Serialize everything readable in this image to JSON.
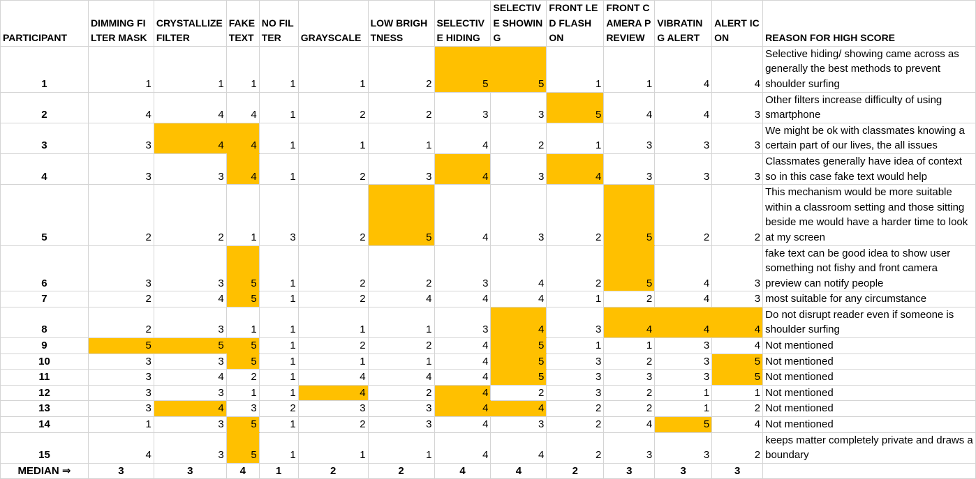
{
  "highlight_color": "#ffc000",
  "header": {
    "participant": "PARTICIPANT",
    "columns": [
      "DIMMING FILTER MASK",
      "CRYSTALLIZE FILTER",
      "FAKE TEXT",
      "NO FILTER",
      "GRAYSCALE",
      "LOW BRIGHTNESS",
      "SELECTIVE HIDING",
      "SELECTIVE SHOWING",
      "FRONT LED FLASH ON",
      "FRONT CAMERA PREVIEW",
      "VIBRATING ALERT",
      "ALERT ICON"
    ],
    "reason": "REASON FOR HIGH SCORE"
  },
  "rows": [
    {
      "participant": "1",
      "scores": [
        "1",
        "1",
        "1",
        "1",
        "1",
        "2",
        "5",
        "5",
        "1",
        "1",
        "4",
        "4"
      ],
      "highlight": [
        6,
        7
      ],
      "reason": "Selective hiding/ showing came across as generally the best methods to prevent shoulder surfing"
    },
    {
      "participant": "2",
      "scores": [
        "4",
        "4",
        "4",
        "1",
        "2",
        "2",
        "3",
        "3",
        "5",
        "4",
        "4",
        "3"
      ],
      "highlight": [
        8
      ],
      "reason": "Other filters increase difficulty of using smartphone"
    },
    {
      "participant": "3",
      "scores": [
        "3",
        "4",
        "4",
        "1",
        "1",
        "1",
        "4",
        "2",
        "1",
        "3",
        "3",
        "3"
      ],
      "highlight": [
        1,
        2
      ],
      "reason": "We might be ok with classmates knowing a certain part of our lives, the all issues"
    },
    {
      "participant": "4",
      "scores": [
        "3",
        "3",
        "4",
        "1",
        "2",
        "3",
        "4",
        "3",
        "4",
        "3",
        "3",
        "3"
      ],
      "highlight": [
        2,
        6,
        8
      ],
      "reason": "Classmates generally have idea of context so in this case fake text would help"
    },
    {
      "participant": "5",
      "scores": [
        "2",
        "2",
        "1",
        "3",
        "2",
        "5",
        "4",
        "3",
        "2",
        "5",
        "2",
        "2"
      ],
      "highlight": [
        5,
        9
      ],
      "reason": "This mechanism would be more suitable within a classroom setting and those sitting beside me  would have a harder time to look at my screen"
    },
    {
      "participant": "6",
      "scores": [
        "3",
        "3",
        "5",
        "1",
        "2",
        "2",
        "3",
        "4",
        "2",
        "5",
        "4",
        "3"
      ],
      "highlight": [
        2,
        9
      ],
      "reason": "fake text can be good idea to show user something not fishy and front camera preview can notify people"
    },
    {
      "participant": "7",
      "scores": [
        "2",
        "4",
        "5",
        "1",
        "2",
        "4",
        "4",
        "4",
        "1",
        "2",
        "4",
        "3"
      ],
      "highlight": [
        2
      ],
      "reason": "most suitable for any circumstance"
    },
    {
      "participant": "8",
      "scores": [
        "2",
        "3",
        "1",
        "1",
        "1",
        "1",
        "3",
        "4",
        "3",
        "4",
        "4",
        "4"
      ],
      "highlight": [
        7,
        9,
        10,
        11
      ],
      "reason": "Do not disrupt reader even if someone is shoulder surfing"
    },
    {
      "participant": "9",
      "scores": [
        "5",
        "5",
        "5",
        "1",
        "2",
        "2",
        "4",
        "5",
        "1",
        "1",
        "3",
        "4"
      ],
      "highlight": [
        0,
        1,
        2,
        7
      ],
      "reason": "Not mentioned"
    },
    {
      "participant": "10",
      "scores": [
        "3",
        "3",
        "5",
        "1",
        "1",
        "1",
        "4",
        "5",
        "3",
        "2",
        "3",
        "5"
      ],
      "highlight": [
        2,
        7,
        11
      ],
      "reason": "Not mentioned"
    },
    {
      "participant": "11",
      "scores": [
        "3",
        "4",
        "2",
        "1",
        "4",
        "4",
        "4",
        "5",
        "3",
        "3",
        "3",
        "5"
      ],
      "highlight": [
        7,
        11
      ],
      "reason": "Not mentioned"
    },
    {
      "participant": "12",
      "scores": [
        "3",
        "3",
        "1",
        "1",
        "4",
        "2",
        "4",
        "2",
        "3",
        "2",
        "1",
        "1"
      ],
      "highlight": [
        4,
        6
      ],
      "reason": "Not mentioned"
    },
    {
      "participant": "13",
      "scores": [
        "3",
        "4",
        "3",
        "2",
        "3",
        "3",
        "4",
        "4",
        "2",
        "2",
        "1",
        "2"
      ],
      "highlight": [
        1,
        6,
        7
      ],
      "reason": "Not mentioned"
    },
    {
      "participant": "14",
      "scores": [
        "1",
        "3",
        "5",
        "1",
        "2",
        "3",
        "4",
        "3",
        "2",
        "4",
        "5",
        "4"
      ],
      "highlight": [
        2,
        10
      ],
      "reason": "Not mentioned"
    },
    {
      "participant": "15",
      "scores": [
        "4",
        "3",
        "5",
        "1",
        "1",
        "1",
        "4",
        "4",
        "2",
        "3",
        "3",
        "2"
      ],
      "highlight": [
        2
      ],
      "reason": "keeps matter completely private and draws  a boundary"
    }
  ],
  "median": {
    "label": "MEDIAN",
    "arrow": "⇒",
    "values": [
      "3",
      "3",
      "4",
      "1",
      "2",
      "2",
      "4",
      "4",
      "2",
      "3",
      "3",
      "3"
    ]
  }
}
